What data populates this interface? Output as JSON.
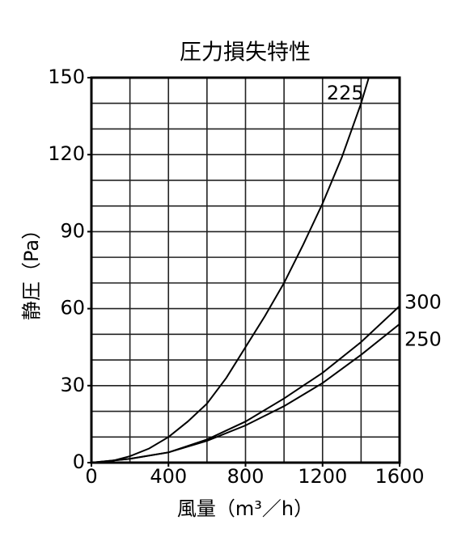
{
  "chart_data": {
    "type": "line",
    "title": "圧力損失特性",
    "x_label": "風量（m³／h）",
    "y_label": "静圧（Pa）",
    "xlim": [
      0,
      1600
    ],
    "xticks": [
      0,
      400,
      800,
      1200,
      1600
    ],
    "ylim": [
      0,
      150
    ],
    "yticks": [
      0,
      30,
      60,
      90,
      120,
      150
    ],
    "xgrid": [
      200,
      400,
      600,
      800,
      1000,
      1200,
      1400
    ],
    "ygrid": [
      10,
      20,
      30,
      40,
      50,
      60,
      70,
      80,
      90,
      100,
      110,
      120,
      130,
      140
    ],
    "grid": true,
    "series": [
      {
        "name": "225",
        "color": "#000000",
        "x": [
          0,
          100,
          200,
          300,
          400,
          500,
          600,
          700,
          800,
          900,
          1000,
          1100,
          1200,
          1300,
          1400,
          1440
        ],
        "values": [
          0,
          0.5,
          2.5,
          5.5,
          10,
          16,
          23,
          33,
          45,
          57,
          70,
          85,
          101,
          119,
          140,
          150
        ]
      },
      {
        "name": "300",
        "color": "#000000",
        "x": [
          0,
          200,
          400,
          600,
          800,
          1000,
          1200,
          1400,
          1600
        ],
        "values": [
          0,
          1.5,
          4,
          9,
          16,
          25,
          35,
          47,
          61
        ]
      },
      {
        "name": "250",
        "color": "#000000",
        "x": [
          0,
          200,
          400,
          600,
          800,
          1000,
          1200,
          1400,
          1600
        ],
        "values": [
          0,
          1.5,
          4,
          8.5,
          14.5,
          22,
          31,
          42,
          54
        ]
      }
    ]
  }
}
